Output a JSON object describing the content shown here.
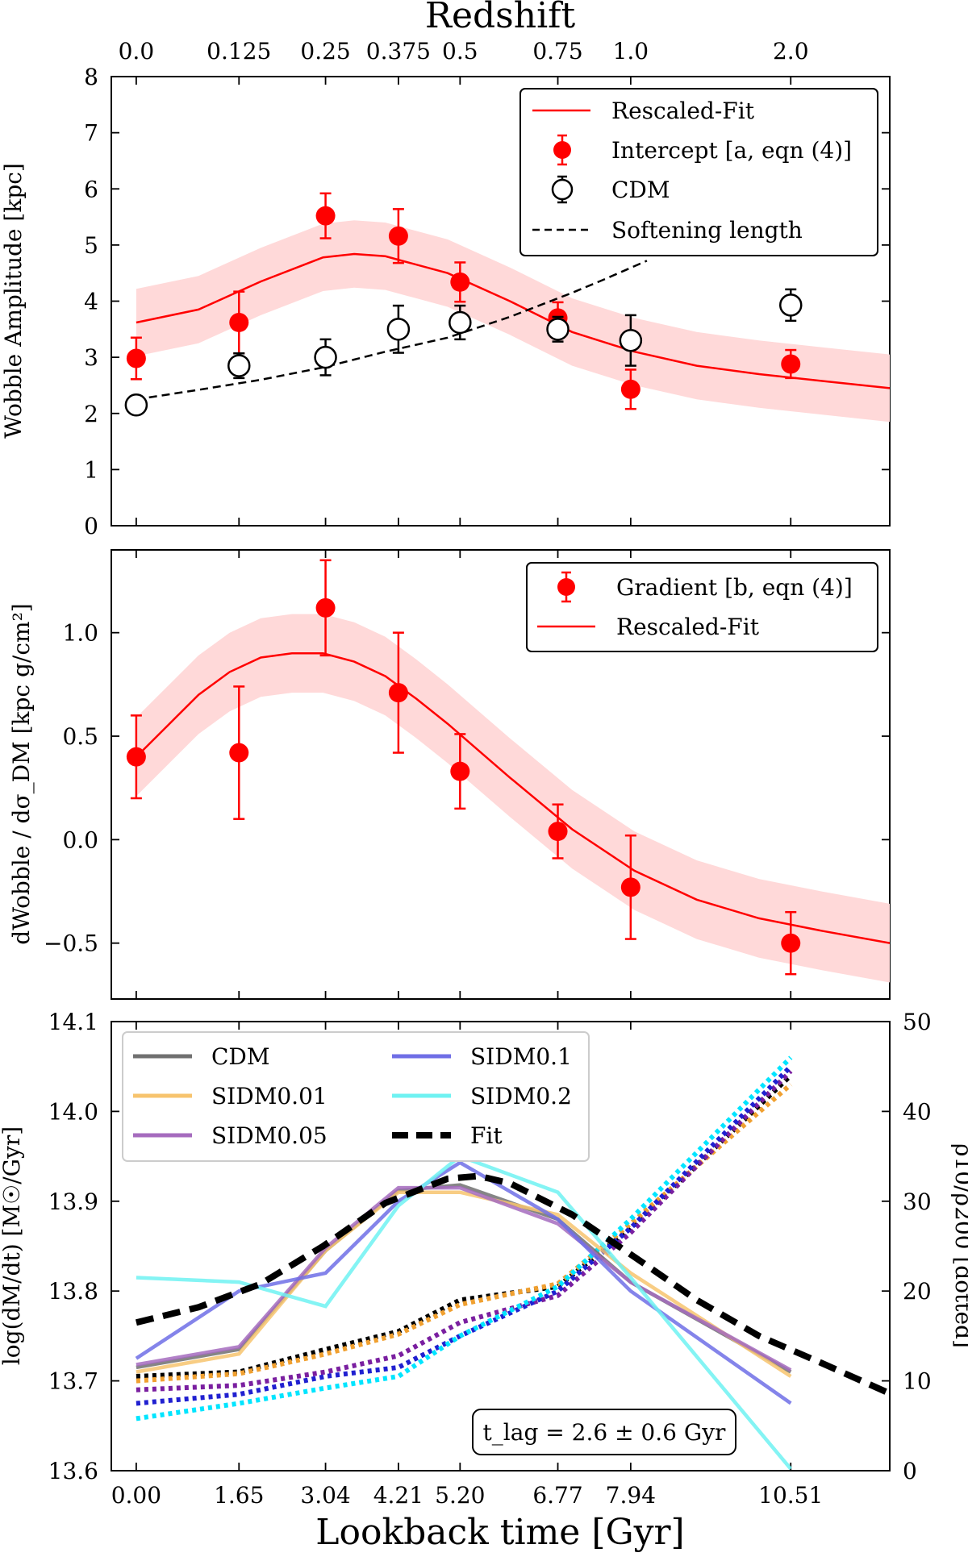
{
  "chart_data": [
    {
      "id": "panel1",
      "type": "scatter",
      "top_axis": {
        "label": "Redshift",
        "ticks": [
          {
            "t": 0.0,
            "label": "0.0"
          },
          {
            "t": 1.65,
            "label": "0.125"
          },
          {
            "t": 3.04,
            "label": "0.25"
          },
          {
            "t": 4.21,
            "label": "0.375"
          },
          {
            "t": 5.2,
            "label": "0.5"
          },
          {
            "t": 6.77,
            "label": "0.75"
          },
          {
            "t": 7.94,
            "label": "1.0"
          },
          {
            "t": 10.51,
            "label": "2.0"
          }
        ]
      },
      "ylabel": "Wobble Amplitude [kpc]",
      "ylim": [
        0,
        8
      ],
      "yticks": [
        0,
        1,
        2,
        3,
        4,
        5,
        6,
        7,
        8
      ],
      "xlim": [
        -0.4,
        12.1
      ],
      "series": [
        {
          "name": "Intercept",
          "legend": "Intercept [a, eqn (4)]",
          "color": "#ff0000",
          "x": [
            0.0,
            1.65,
            3.04,
            4.21,
            5.2,
            6.77,
            7.94,
            10.51
          ],
          "y": [
            2.98,
            3.62,
            5.52,
            5.16,
            4.34,
            3.7,
            2.43,
            2.88
          ],
          "err": [
            0.37,
            0.55,
            0.4,
            0.48,
            0.35,
            0.28,
            0.35,
            0.25
          ]
        },
        {
          "name": "CDM",
          "legend": "CDM",
          "color": "#000000",
          "x": [
            0.0,
            1.65,
            3.04,
            4.21,
            5.2,
            6.77,
            7.94,
            10.51
          ],
          "y": [
            2.15,
            2.85,
            3.0,
            3.5,
            3.62,
            3.5,
            3.3,
            3.93
          ],
          "err": [
            0.1,
            0.22,
            0.32,
            0.42,
            0.3,
            0.22,
            0.45,
            0.28
          ]
        },
        {
          "name": "Rescaled-Fit",
          "legend": "Rescaled-Fit",
          "color": "#ff0000",
          "x": [
            0,
            1,
            2,
            3,
            3.5,
            4,
            5,
            6,
            7,
            8,
            9,
            10,
            11,
            12.1
          ],
          "y": [
            3.62,
            3.85,
            4.35,
            4.78,
            4.84,
            4.8,
            4.5,
            4.0,
            3.45,
            3.1,
            2.85,
            2.7,
            2.58,
            2.45
          ],
          "band": 0.6
        },
        {
          "name": "Softening length",
          "legend": "Softening length",
          "color": "#000000",
          "x": [
            0,
            1,
            2,
            3,
            4,
            5,
            6,
            7,
            7.5,
            8.2
          ],
          "y": [
            2.25,
            2.42,
            2.6,
            2.82,
            3.1,
            3.35,
            3.72,
            4.15,
            4.38,
            4.72
          ]
        }
      ]
    },
    {
      "id": "panel2",
      "type": "scatter",
      "ylabel": "dWobble / dσ_DM [kpc g/cm²]",
      "ylim": [
        -0.77,
        1.4
      ],
      "yticks": [
        {
          "v": 1.0,
          "label": "1.0"
        },
        {
          "v": 0.5,
          "label": "0.5"
        },
        {
          "v": 0.0,
          "label": "0.0"
        },
        {
          "v": -0.5,
          "label": "−0.5"
        }
      ],
      "xlim": [
        -0.4,
        12.1
      ],
      "series": [
        {
          "name": "Gradient",
          "legend": "Gradient [b, eqn (4)]",
          "color": "#ff0000",
          "x": [
            0.0,
            1.65,
            3.04,
            4.21,
            5.2,
            6.77,
            7.94,
            10.51
          ],
          "y": [
            0.4,
            0.42,
            1.12,
            0.71,
            0.33,
            0.04,
            -0.23,
            -0.5
          ],
          "err": [
            0.2,
            0.32,
            0.23,
            0.29,
            0.18,
            0.13,
            0.25,
            0.15
          ]
        },
        {
          "name": "Rescaled-Fit",
          "legend": "Rescaled-Fit",
          "color": "#ff0000",
          "x": [
            0,
            0.5,
            1,
            1.5,
            2,
            2.5,
            3,
            3.5,
            4,
            4.5,
            5,
            6,
            7,
            8,
            9,
            10,
            11,
            12.1
          ],
          "y": [
            0.4,
            0.55,
            0.7,
            0.81,
            0.88,
            0.9,
            0.9,
            0.86,
            0.79,
            0.68,
            0.56,
            0.3,
            0.05,
            -0.15,
            -0.29,
            -0.38,
            -0.44,
            -0.5
          ],
          "band": 0.19
        }
      ]
    },
    {
      "id": "panel3",
      "type": "line",
      "xlabel": "Lookback time [Gyr]",
      "ylabel": "log(dM/dt) [M☉/Gyr]",
      "y2label": "ρ10/ρ200 [dotted]",
      "ylim": [
        13.6,
        14.1
      ],
      "y2lim": [
        0,
        50
      ],
      "yticks": [
        13.6,
        13.7,
        13.8,
        13.9,
        14.0,
        14.1
      ],
      "y2ticks": [
        0,
        10,
        20,
        30,
        40,
        50
      ],
      "xlim": [
        -0.4,
        12.1
      ],
      "xticks": [
        {
          "t": 0.0,
          "label": "0.00"
        },
        {
          "t": 1.65,
          "label": "1.65"
        },
        {
          "t": 3.04,
          "label": "3.04"
        },
        {
          "t": 4.21,
          "label": "4.21"
        },
        {
          "t": 5.2,
          "label": "5.20"
        },
        {
          "t": 6.77,
          "label": "6.77"
        },
        {
          "t": 7.94,
          "label": "7.94"
        },
        {
          "t": 10.51,
          "label": "10.51"
        }
      ],
      "annotation": "t_lag = 2.6 ± 0.6 Gyr",
      "x": [
        0.0,
        1.65,
        3.04,
        4.21,
        5.2,
        6.77,
        7.94,
        10.51
      ],
      "series": [
        {
          "name": "CDM",
          "color": "#707070",
          "y": [
            13.715,
            13.735,
            13.845,
            13.912,
            13.918,
            13.88,
            13.81,
            13.71
          ],
          "rho": [
            10.5,
            11,
            13.5,
            15.5,
            19,
            20.5,
            27,
            44
          ]
        },
        {
          "name": "SIDM0.01",
          "color": "#f7c46e",
          "y": [
            13.71,
            13.73,
            13.845,
            13.91,
            13.91,
            13.885,
            13.82,
            13.705
          ],
          "rho": [
            10,
            10.8,
            13,
            15.2,
            18.5,
            20.8,
            27.5,
            43
          ]
        },
        {
          "name": "SIDM0.05",
          "color": "#a56bbe",
          "y": [
            13.718,
            13.738,
            13.848,
            13.915,
            13.915,
            13.875,
            13.81,
            13.712
          ],
          "rho": [
            9,
            9.5,
            11,
            12.8,
            16.5,
            19.5,
            26.5,
            44.5
          ]
        },
        {
          "name": "SIDM0.1",
          "color": "#6f6ee6",
          "y": [
            13.725,
            13.8,
            13.82,
            13.9,
            13.943,
            13.88,
            13.8,
            13.675
          ],
          "rho": [
            7.5,
            8.5,
            10.5,
            11.5,
            15,
            20,
            27,
            45
          ]
        },
        {
          "name": "SIDM0.2",
          "color": "#6ff2f2",
          "y": [
            13.815,
            13.81,
            13.783,
            13.895,
            13.95,
            13.91,
            13.815,
            13.602
          ],
          "rho": [
            5.8,
            7.5,
            9.2,
            10.5,
            15,
            20.5,
            28,
            46
          ]
        },
        {
          "name": "Fit",
          "color": "#000000",
          "fit_x": [
            0,
            1,
            2,
            3,
            4,
            5,
            5.5,
            6,
            7,
            8,
            9,
            10,
            11,
            12.1
          ],
          "fit_y": [
            13.765,
            13.782,
            13.808,
            13.85,
            13.898,
            13.925,
            13.928,
            13.92,
            13.885,
            13.838,
            13.79,
            13.75,
            13.72,
            13.686
          ]
        }
      ],
      "legend_labels": [
        "CDM",
        "SIDM0.01",
        "SIDM0.05",
        "SIDM0.1",
        "SIDM0.2",
        "Fit"
      ]
    }
  ]
}
